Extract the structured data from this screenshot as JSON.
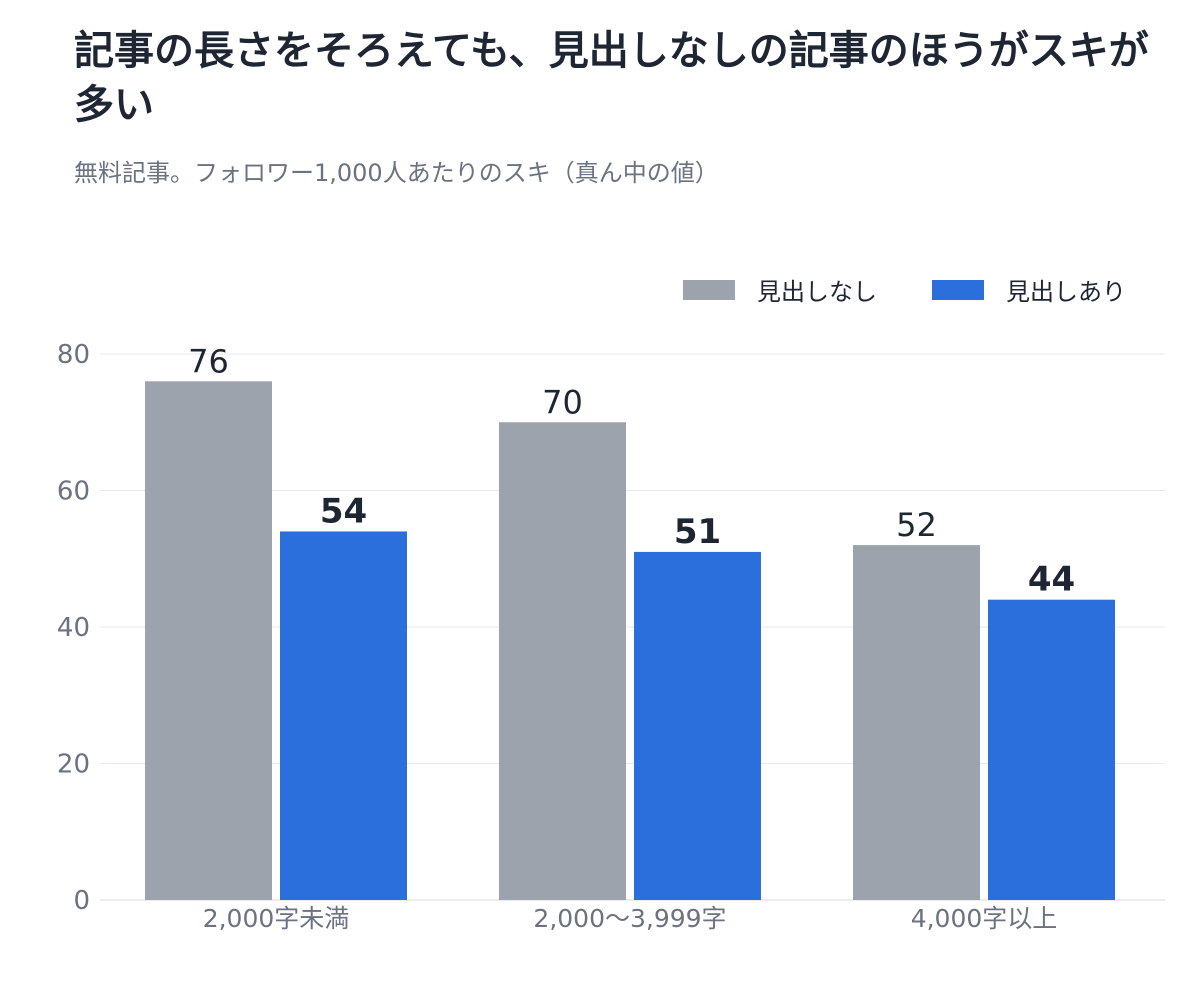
{
  "header": {
    "title": "記事の長さをそろえても、見出しなしの記事のほうがスキが多い",
    "subtitle": "無料記事。フォロワー1,000人あたりのスキ（真ん中の値）"
  },
  "legend": {
    "items": [
      {
        "label": "見出しなし",
        "color": "#9ca3ad"
      },
      {
        "label": "見出しあり",
        "color": "#2a6fdb"
      }
    ]
  },
  "chart_data": {
    "type": "bar",
    "title": "記事の長さをそろえても、見出しなしの記事のほうがスキが多い",
    "subtitle": "無料記事。フォロワー1,000人あたりのスキ（真ん中の値）",
    "categories": [
      "2,000字未満",
      "2,000〜3,999字",
      "4,000字以上"
    ],
    "series": [
      {
        "name": "見出しなし",
        "values": [
          76,
          70,
          52
        ],
        "color": "#9ca3ad"
      },
      {
        "name": "見出しあり",
        "values": [
          54,
          51,
          44
        ],
        "color": "#2a6fdb"
      }
    ],
    "ylim": [
      0,
      80
    ],
    "yticks": [
      0,
      20,
      40,
      60,
      80
    ],
    "grid": true,
    "legend_position": "top-right",
    "xlabel": "",
    "ylabel": ""
  }
}
